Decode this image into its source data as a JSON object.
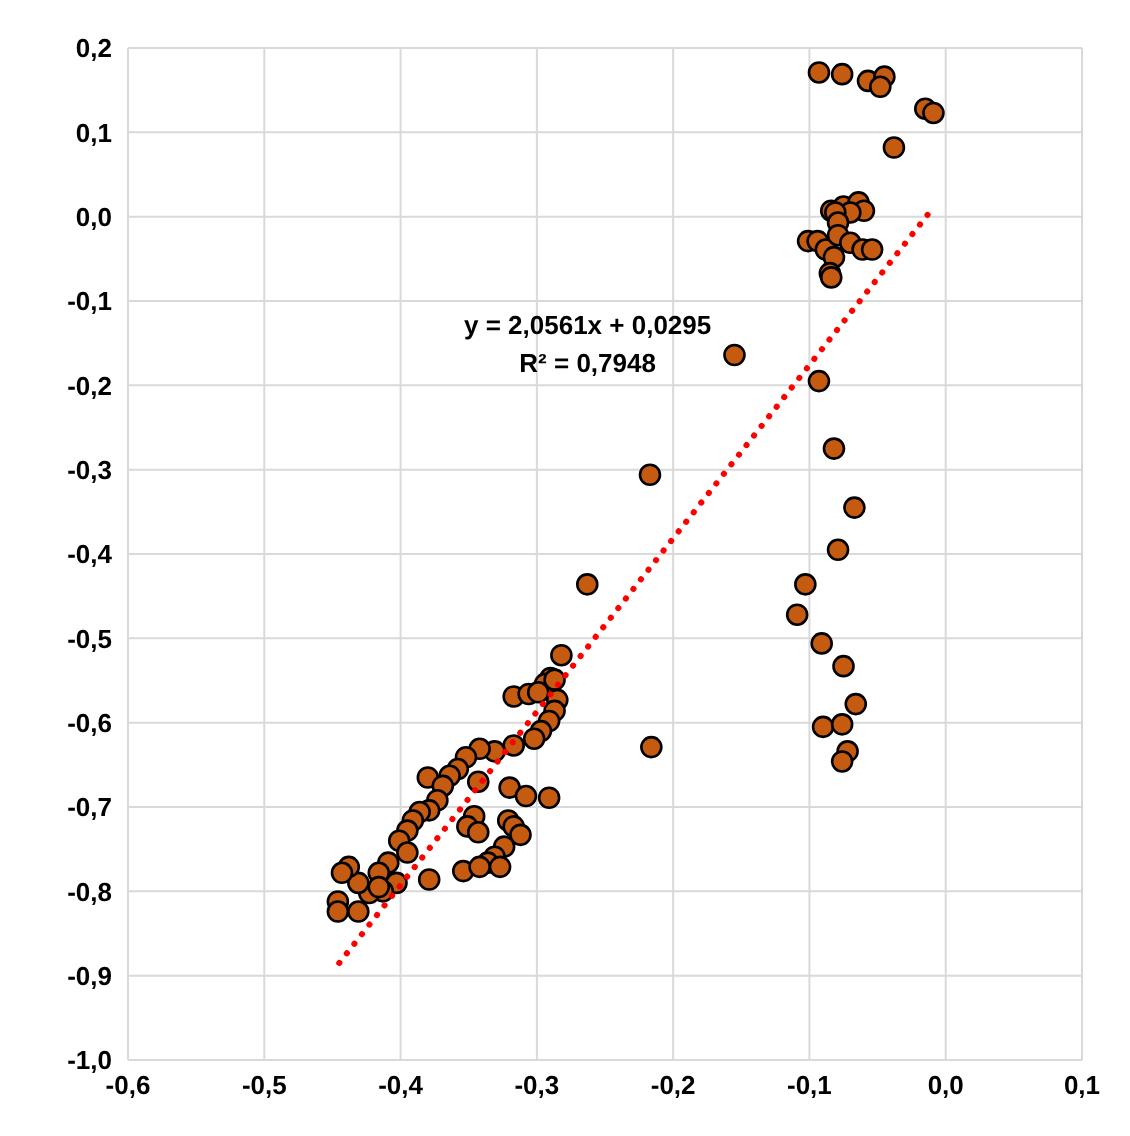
{
  "chart_data": {
    "type": "scatter",
    "xlim": [
      -0.6,
      0.1
    ],
    "ylim": [
      -1.0,
      0.2
    ],
    "xticks": [
      {
        "value": -0.6,
        "label": "-0,6"
      },
      {
        "value": -0.5,
        "label": "-0,5"
      },
      {
        "value": -0.4,
        "label": "-0,4"
      },
      {
        "value": -0.3,
        "label": "-0,3"
      },
      {
        "value": -0.2,
        "label": "-0,2"
      },
      {
        "value": -0.1,
        "label": "-0,1"
      },
      {
        "value": 0,
        "label": "0,0"
      },
      {
        "value": 0.1,
        "label": "0,1"
      }
    ],
    "yticks": [
      {
        "value": 0.2,
        "label": "0,2"
      },
      {
        "value": 0.1,
        "label": "0,1"
      },
      {
        "value": 0,
        "label": "0,0"
      },
      {
        "value": -0.1,
        "label": "-0,1"
      },
      {
        "value": -0.2,
        "label": "-0,2"
      },
      {
        "value": -0.3,
        "label": "-0,3"
      },
      {
        "value": -0.4,
        "label": "-0,4"
      },
      {
        "value": -0.5,
        "label": "-0,5"
      },
      {
        "value": -0.6,
        "label": "-0,6"
      },
      {
        "value": -0.7,
        "label": "-0,7"
      },
      {
        "value": -0.8,
        "label": "-0,8"
      },
      {
        "value": -0.9,
        "label": "-0,9"
      },
      {
        "value": -1.0,
        "label": "-1,0"
      }
    ],
    "grid": true,
    "marker": "circle",
    "annotations": [
      "y = 2,0561x + 0,0295",
      "R² = 0,7948"
    ],
    "series": [
      {
        "color": "#c55a11",
        "x": [
          -0.093,
          -0.076,
          -0.057,
          -0.045,
          -0.048,
          -0.015,
          -0.009,
          -0.038,
          -0.084,
          -0.075,
          -0.064,
          -0.06,
          -0.07,
          -0.081,
          -0.079,
          -0.101,
          -0.094,
          -0.088,
          -0.079,
          -0.07,
          -0.061,
          -0.054,
          -0.082,
          -0.085,
          -0.084,
          -0.093,
          -0.082,
          -0.067,
          -0.079,
          -0.103,
          -0.109,
          -0.091,
          -0.075,
          -0.066,
          -0.09,
          -0.076,
          -0.072,
          -0.076,
          -0.155,
          -0.217,
          -0.263,
          -0.216,
          -0.282,
          -0.29,
          -0.294,
          -0.287,
          -0.317,
          -0.306,
          -0.299,
          -0.285,
          -0.287,
          -0.291,
          -0.297,
          -0.302,
          -0.317,
          -0.331,
          -0.342,
          -0.352,
          -0.358,
          -0.364,
          -0.38,
          -0.343,
          -0.369,
          -0.373,
          -0.379,
          -0.386,
          -0.391,
          -0.32,
          -0.308,
          -0.291,
          -0.346,
          -0.351,
          -0.343,
          -0.321,
          -0.317,
          -0.312,
          -0.324,
          -0.331,
          -0.336,
          -0.327,
          -0.354,
          -0.342,
          -0.395,
          -0.401,
          -0.395,
          -0.409,
          -0.416,
          -0.403,
          -0.413,
          -0.423,
          -0.431,
          -0.438,
          -0.443,
          -0.416,
          -0.379,
          -0.446,
          -0.431,
          -0.446
        ],
        "values": [
          0.171,
          0.169,
          0.161,
          0.166,
          0.154,
          0.128,
          0.123,
          0.082,
          0.007,
          0.012,
          0.017,
          0.007,
          0.005,
          0.005,
          -0.007,
          -0.029,
          -0.029,
          -0.039,
          -0.022,
          -0.031,
          -0.039,
          -0.039,
          -0.048,
          -0.067,
          -0.072,
          -0.195,
          -0.275,
          -0.345,
          -0.395,
          -0.436,
          -0.472,
          -0.506,
          -0.533,
          -0.578,
          -0.605,
          -0.602,
          -0.634,
          -0.646,
          -0.164,
          -0.306,
          -0.436,
          -0.629,
          -0.52,
          -0.547,
          -0.554,
          -0.549,
          -0.569,
          -0.566,
          -0.564,
          -0.573,
          -0.586,
          -0.598,
          -0.61,
          -0.619,
          -0.627,
          -0.634,
          -0.631,
          -0.641,
          -0.655,
          -0.663,
          -0.665,
          -0.67,
          -0.675,
          -0.692,
          -0.704,
          -0.706,
          -0.716,
          -0.677,
          -0.687,
          -0.689,
          -0.711,
          -0.723,
          -0.73,
          -0.716,
          -0.723,
          -0.733,
          -0.747,
          -0.759,
          -0.766,
          -0.771,
          -0.776,
          -0.771,
          -0.728,
          -0.74,
          -0.754,
          -0.766,
          -0.778,
          -0.79,
          -0.8,
          -0.802,
          -0.79,
          -0.771,
          -0.778,
          -0.795,
          -0.786,
          -0.812,
          -0.824,
          -0.824
        ]
      },
      {
        "type": "line",
        "color": "#ff0000",
        "line_style": "dotted",
        "marker": "none",
        "x": [
          -0.445,
          -0.01
        ],
        "values": [
          -0.885,
          0.009
        ]
      }
    ]
  }
}
